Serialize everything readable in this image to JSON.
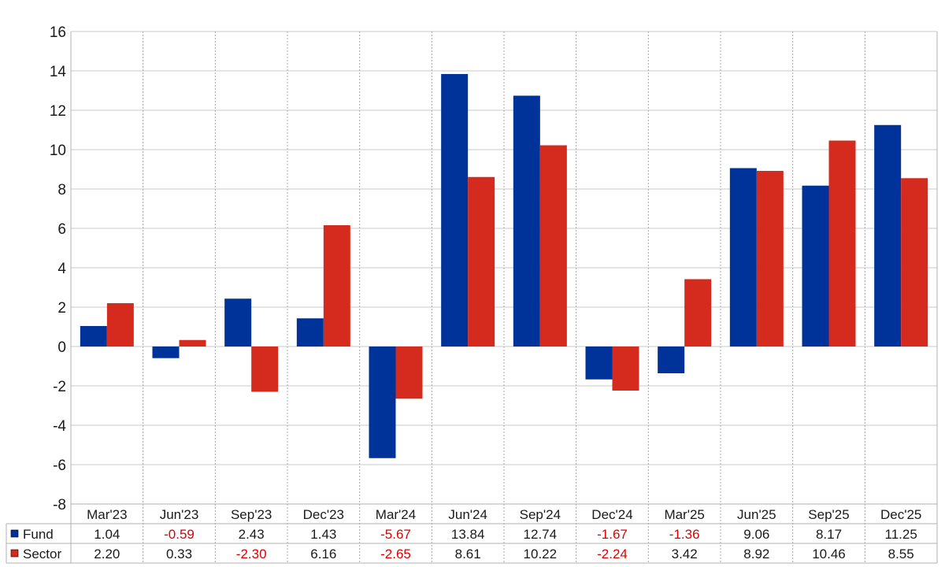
{
  "chart_data": {
    "type": "bar",
    "categories": [
      "Mar'23",
      "Jun'23",
      "Sep'23",
      "Dec'23",
      "Mar'24",
      "Jun'24",
      "Sep'24",
      "Dec'24",
      "Mar'25",
      "Jun'25",
      "Sep'25",
      "Dec'25"
    ],
    "series": [
      {
        "name": "Fund",
        "color": "#003399",
        "values": [
          1.04,
          -0.59,
          2.43,
          1.43,
          -5.67,
          13.84,
          12.74,
          -1.67,
          -1.36,
          9.06,
          8.17,
          11.25
        ],
        "labels": [
          "1.04",
          "-0.59",
          "2.43",
          "1.43",
          "-5.67",
          "13.84",
          "12.74",
          "-1.67",
          "-1.36",
          "9.06",
          "8.17",
          "11.25"
        ]
      },
      {
        "name": "Sector",
        "color": "#d52b1e",
        "values": [
          2.2,
          0.33,
          -2.3,
          6.16,
          -2.65,
          8.61,
          10.22,
          -2.24,
          3.42,
          8.92,
          10.46,
          8.55
        ],
        "labels": [
          "2.20",
          "0.33",
          "-2.30",
          "6.16",
          "-2.65",
          "8.61",
          "10.22",
          "-2.24",
          "3.42",
          "8.92",
          "10.46",
          "8.55"
        ]
      }
    ],
    "ylim": [
      -8,
      16
    ],
    "yticks": [
      16,
      14,
      12,
      10,
      8,
      6,
      4,
      2,
      0,
      -2,
      -4,
      -6,
      -8
    ],
    "negative_color": "#e00000",
    "grid": true,
    "legend": "data-table-below"
  }
}
